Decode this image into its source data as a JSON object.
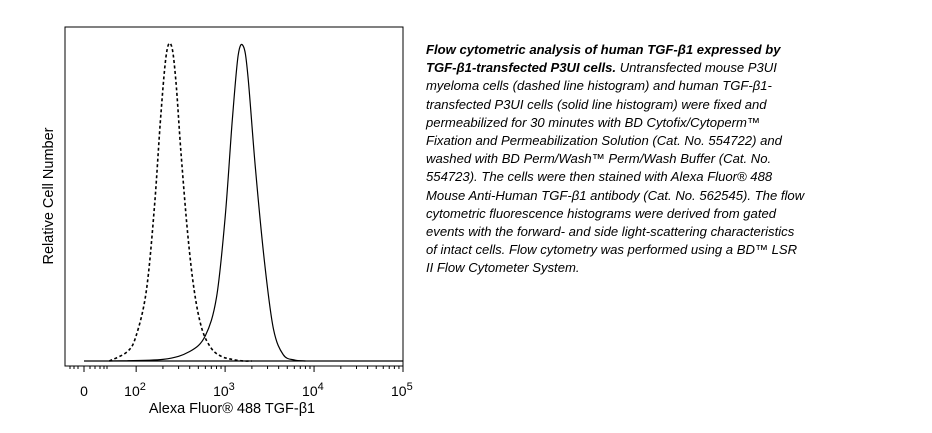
{
  "chart_data": {
    "type": "line",
    "title": "",
    "xlabel": "Alexa Fluor® 488 TGF-β1",
    "ylabel": "Relative Cell Number",
    "x_scale": "log",
    "x_ticks": [
      {
        "value": 0,
        "label": "0"
      },
      {
        "value": 100,
        "label": "10",
        "exp": "2"
      },
      {
        "value": 1000,
        "label": "10",
        "exp": "3"
      },
      {
        "value": 10000,
        "label": "10",
        "exp": "4"
      },
      {
        "value": 100000,
        "label": "10",
        "exp": "5"
      }
    ],
    "x_decade_range": [
      1.2,
      5.0
    ],
    "ylim": [
      0,
      1
    ],
    "grid": false,
    "legend": "none",
    "series": [
      {
        "style": "dashed",
        "x": [
          50,
          80,
          100,
          130,
          160,
          190,
          220,
          250,
          280,
          320,
          380,
          450,
          550,
          700,
          900,
          1200,
          1600,
          2000
        ],
        "y": [
          0,
          0.03,
          0.08,
          0.22,
          0.48,
          0.78,
          0.97,
          0.99,
          0.88,
          0.65,
          0.4,
          0.22,
          0.1,
          0.04,
          0.015,
          0.005,
          0,
          0
        ]
      },
      {
        "style": "solid",
        "x": [
          50,
          200,
          400,
          600,
          800,
          1000,
          1200,
          1400,
          1600,
          1800,
          2200,
          2800,
          3500,
          4500,
          6000,
          8000
        ],
        "y": [
          0,
          0.005,
          0.03,
          0.08,
          0.2,
          0.45,
          0.75,
          0.96,
          0.99,
          0.9,
          0.6,
          0.3,
          0.1,
          0.02,
          0.003,
          0
        ]
      }
    ]
  },
  "caption": {
    "title": "Flow cytometric analysis of human TGF-β1 expressed by TGF-β1-transfected P3UI cells.",
    "body": "Untransfected mouse P3UI myeloma cells (dashed line histogram) and human TGF-β1-transfected P3UI cells (solid line histogram) were fixed and permeabilized for 30 minutes with BD Cytofix/Cytoperm™ Fixation and Permeabilization Solution (Cat. No. 554722) and washed with BD Perm/Wash™ Perm/Wash Buffer (Cat. No. 554723). The cells were then stained with Alexa Fluor® 488 Mouse Anti-Human TGF-β1 antibody (Cat. No. 562545). The flow cytometric fluorescence histograms were derived from gated events with the forward- and side light-scattering characteristics of intact cells. Flow cytometry was performed using a BD™ LSR II Flow Cytometer System."
  }
}
